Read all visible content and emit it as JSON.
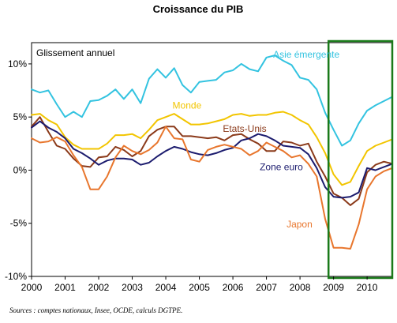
{
  "chart_data": {
    "type": "line",
    "title": "Croissance du PIB",
    "subtitle": "Glissement annuel",
    "source": "Sources : comptes nationaux, Insee, OCDE, calculs DGTPE.",
    "xlim": [
      2000,
      2010.75
    ],
    "ylim": [
      -10,
      12
    ],
    "x_ticks": [
      2000,
      2001,
      2002,
      2003,
      2004,
      2005,
      2006,
      2007,
      2008,
      2009,
      2010
    ],
    "x_tick_labels": [
      "2000",
      "2001",
      "2002",
      "2003",
      "2004",
      "2005",
      "2006",
      "2007",
      "2008",
      "2009",
      "2010"
    ],
    "y_ticks": [
      -10,
      -5,
      0,
      5,
      10
    ],
    "y_tick_labels": [
      "-10%",
      "-5%",
      "0%",
      "5%",
      "10%"
    ],
    "grid": false,
    "x": [
      2000.0,
      2000.25,
      2000.5,
      2000.75,
      2001.0,
      2001.25,
      2001.5,
      2001.75,
      2002.0,
      2002.25,
      2002.5,
      2002.75,
      2003.0,
      2003.25,
      2003.5,
      2003.75,
      2004.0,
      2004.25,
      2004.5,
      2004.75,
      2005.0,
      2005.25,
      2005.5,
      2005.75,
      2006.0,
      2006.25,
      2006.5,
      2006.75,
      2007.0,
      2007.25,
      2007.5,
      2007.75,
      2008.0,
      2008.25,
      2008.5,
      2008.75,
      2009.0,
      2009.25,
      2009.5,
      2009.75,
      2010.0,
      2010.25,
      2010.5,
      2010.75
    ],
    "series": [
      {
        "name": "Asie émergente",
        "color": "#33C3E0",
        "values": [
          7.6,
          7.3,
          7.5,
          6.2,
          5.0,
          5.5,
          5.0,
          6.5,
          6.6,
          7.0,
          7.6,
          6.7,
          7.6,
          6.3,
          8.6,
          9.5,
          8.7,
          9.6,
          8.0,
          7.3,
          8.3,
          8.4,
          8.5,
          9.2,
          9.4,
          10.0,
          9.5,
          9.3,
          10.6,
          10.8,
          10.3,
          9.9,
          8.7,
          8.5,
          7.6,
          5.4,
          3.8,
          2.3,
          2.8,
          4.4,
          5.6,
          6.1,
          6.5,
          6.9
        ]
      },
      {
        "name": "Monde",
        "color": "#F2C500",
        "values": [
          5.2,
          5.3,
          4.7,
          4.3,
          3.1,
          2.4,
          2.0,
          2.0,
          2.0,
          2.5,
          3.3,
          3.3,
          3.4,
          3.0,
          3.8,
          4.7,
          5.0,
          5.3,
          4.8,
          4.3,
          4.3,
          4.4,
          4.6,
          4.8,
          5.2,
          5.3,
          5.1,
          5.2,
          5.2,
          5.4,
          5.5,
          5.2,
          4.7,
          4.3,
          3.1,
          1.6,
          -0.4,
          -1.4,
          -1.1,
          0.4,
          1.8,
          2.3,
          2.6,
          2.9
        ]
      },
      {
        "name": "Etats-Unis",
        "color": "#8B3A1A",
        "values": [
          4.1,
          5.0,
          3.6,
          2.3,
          2.0,
          1.1,
          0.4,
          0.3,
          1.2,
          1.3,
          2.2,
          1.9,
          1.3,
          1.8,
          3.2,
          3.8,
          4.1,
          4.1,
          3.2,
          3.2,
          3.1,
          3.0,
          3.1,
          2.8,
          3.3,
          3.4,
          2.9,
          2.5,
          1.8,
          1.8,
          2.7,
          2.6,
          2.3,
          2.5,
          0.8,
          -0.6,
          -2.2,
          -2.6,
          -3.3,
          -2.7,
          -0.2,
          0.5,
          0.8,
          0.6
        ]
      },
      {
        "name": "Zone euro",
        "color": "#1C1C6E",
        "values": [
          4.0,
          4.6,
          4.0,
          3.6,
          3.0,
          2.0,
          1.6,
          1.1,
          0.5,
          0.9,
          1.1,
          1.1,
          1.0,
          0.5,
          0.7,
          1.3,
          1.8,
          2.2,
          2.0,
          1.7,
          1.5,
          1.4,
          1.6,
          1.9,
          2.1,
          2.8,
          3.0,
          3.4,
          3.2,
          2.8,
          2.3,
          2.2,
          2.1,
          1.5,
          0.2,
          -1.6,
          -2.5,
          -2.6,
          -2.5,
          -2.1,
          0.2,
          0.0,
          0.3,
          0.6
        ]
      },
      {
        "name": "Japon",
        "color": "#E8762D",
        "values": [
          3.0,
          2.6,
          2.7,
          3.1,
          2.7,
          1.4,
          0.3,
          -1.8,
          -1.8,
          -0.6,
          1.2,
          2.3,
          1.8,
          1.5,
          1.9,
          2.6,
          4.1,
          3.0,
          2.9,
          1.0,
          0.8,
          1.9,
          2.2,
          2.4,
          2.2,
          2.0,
          1.4,
          1.8,
          2.6,
          2.2,
          1.8,
          1.2,
          1.4,
          0.6,
          -0.6,
          -4.6,
          -7.3,
          -7.3,
          -7.4,
          -5.1,
          -1.8,
          -0.6,
          -0.1,
          0.2
        ]
      }
    ],
    "annotations": [
      {
        "text": "Asie émergente",
        "x": 2007.2,
        "y": 10.6,
        "color": "#33C3E0",
        "series": 0
      },
      {
        "text": "Monde",
        "x": 2004.2,
        "y": 5.8,
        "color": "#F2C500",
        "series": 1
      },
      {
        "text": "Etats-Unis",
        "x": 2005.7,
        "y": 3.6,
        "color": "#8B3A1A",
        "series": 2
      },
      {
        "text": "Zone euro",
        "x": 2006.8,
        "y": 0.0,
        "color": "#1C1C6E",
        "series": 3
      },
      {
        "text": "Japon",
        "x": 2007.6,
        "y": -5.4,
        "color": "#E8762D",
        "series": 4
      }
    ],
    "highlight": {
      "x_range": [
        2008.85,
        2010.75
      ],
      "color": "#1A7A1A"
    }
  }
}
